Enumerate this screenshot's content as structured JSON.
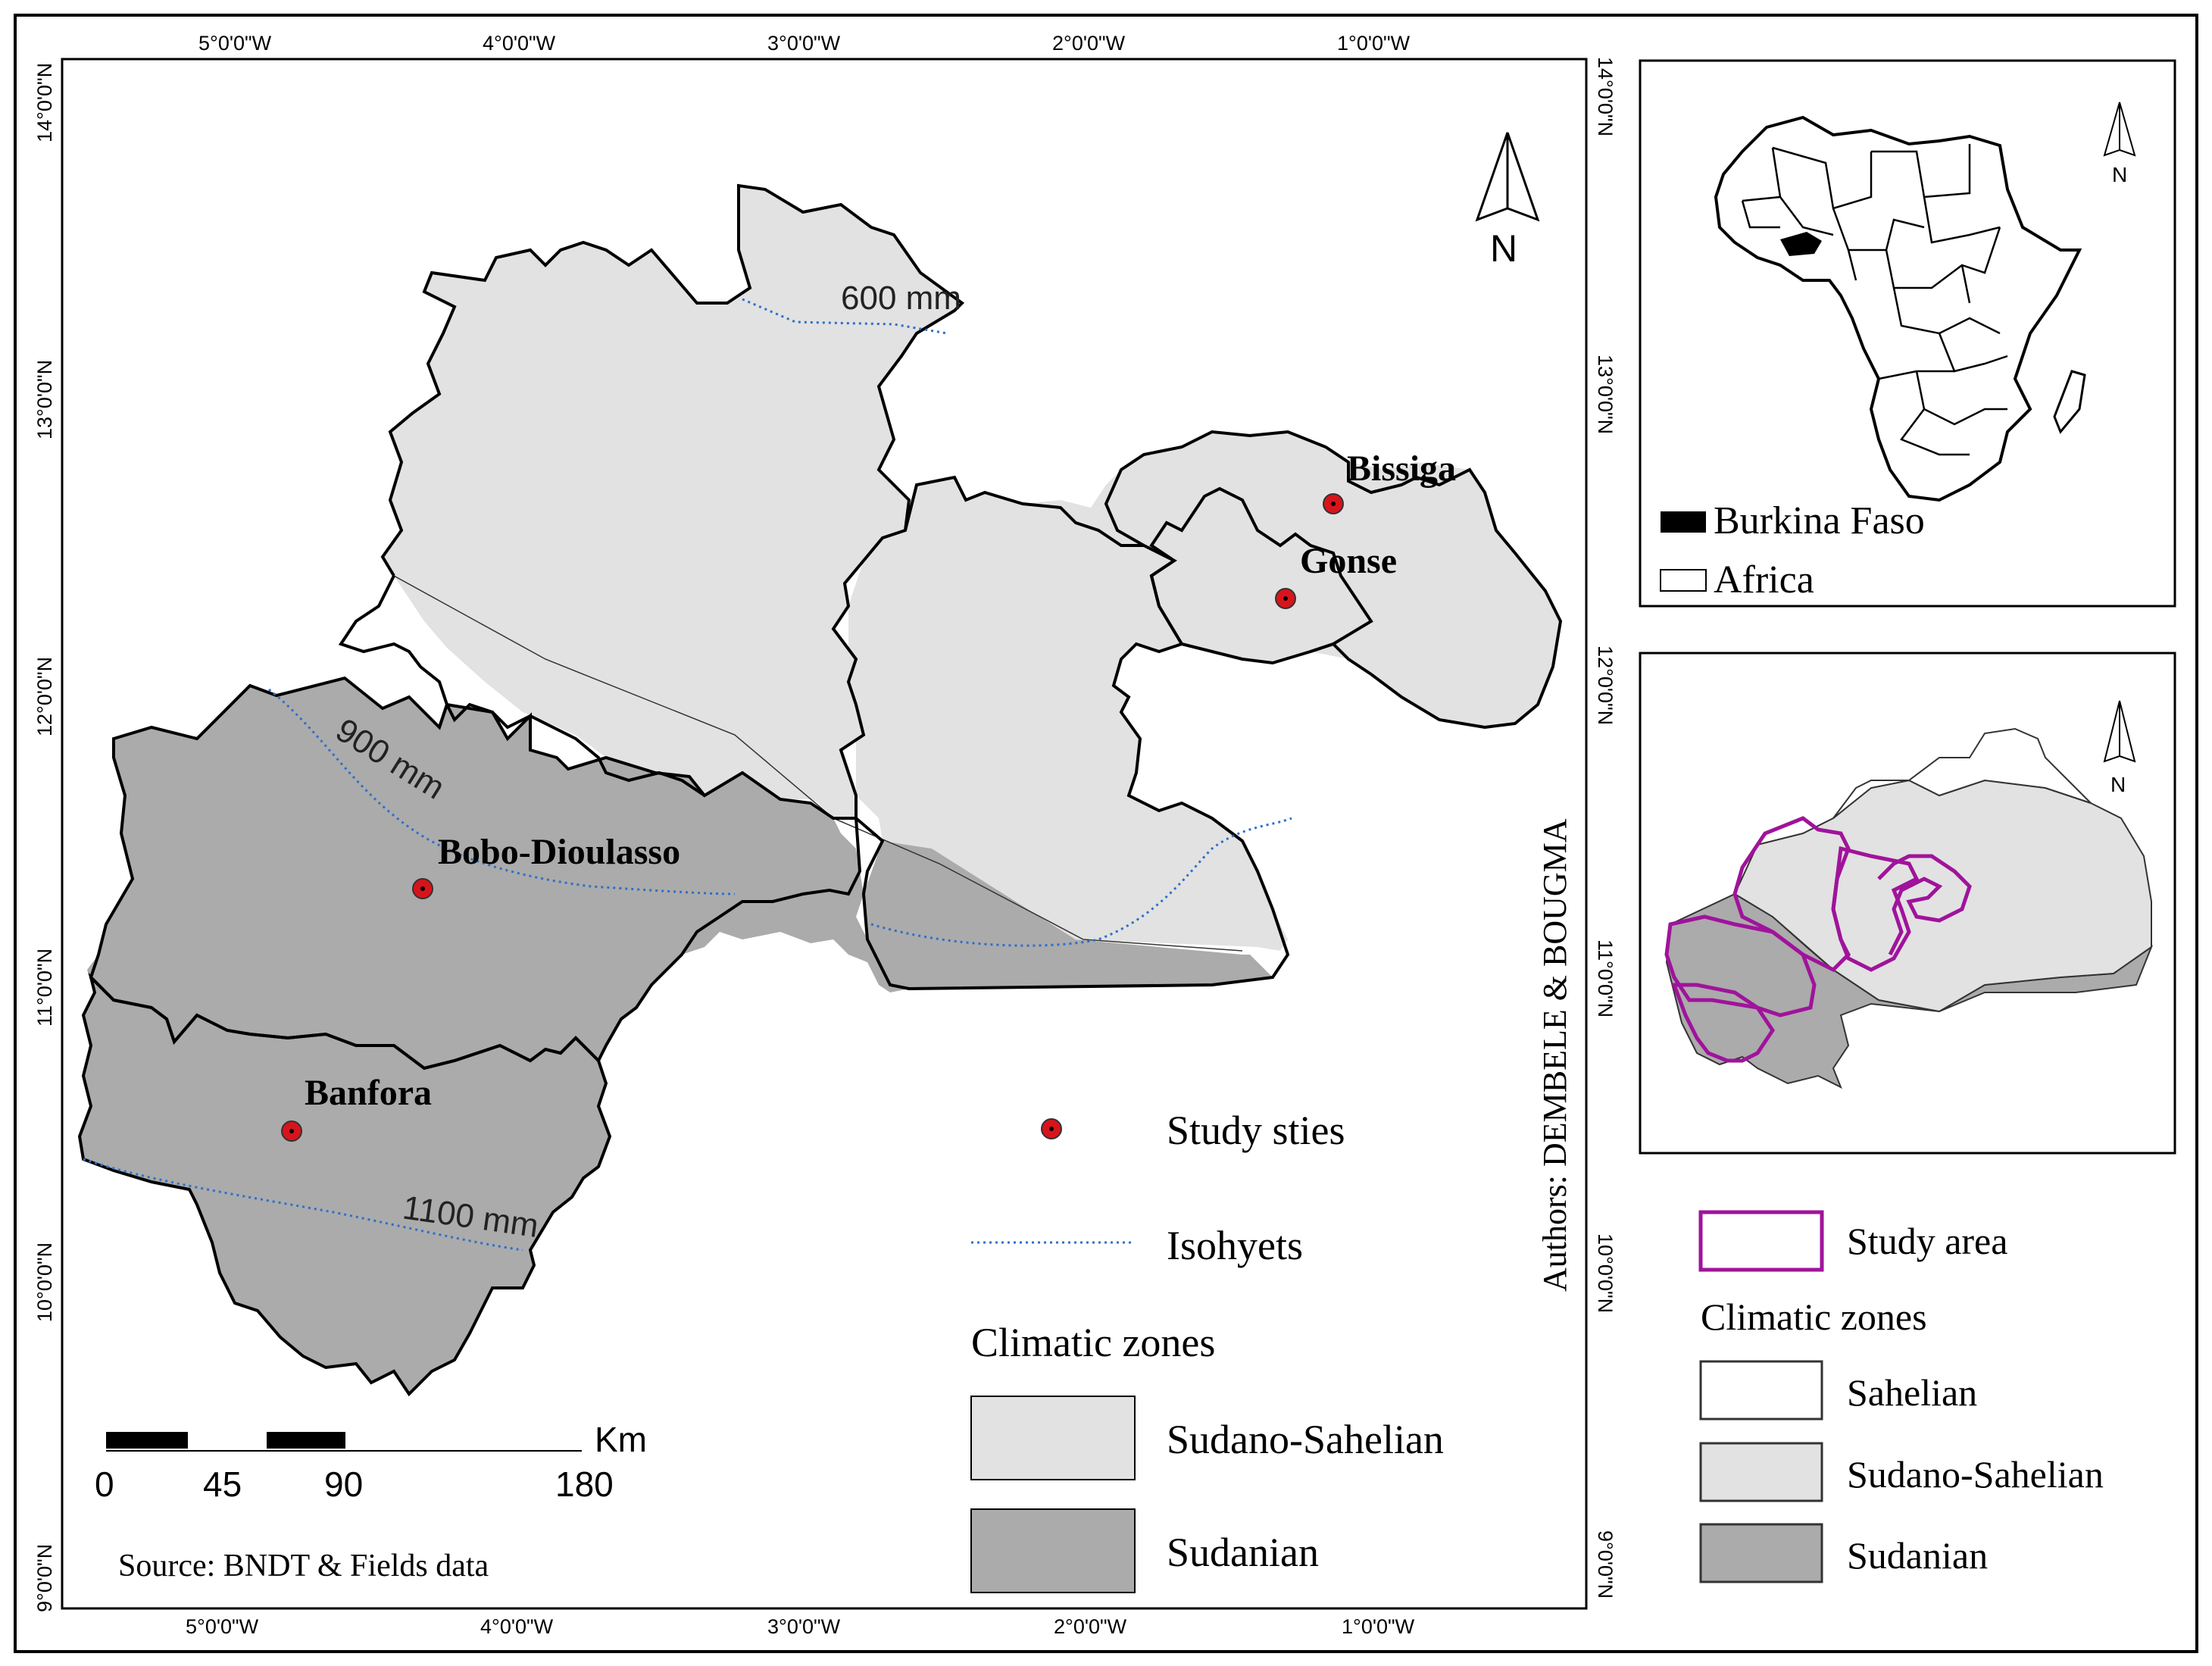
{
  "main_map": {
    "graticule": {
      "top": [
        "5°0'0\"W",
        "4°0'0\"W",
        "3°0'0\"W",
        "2°0'0\"W",
        "1°0'0\"W"
      ],
      "bottom": [
        "5°0'0\"W",
        "4°0'0\"W",
        "3°0'0\"W",
        "2°0'0\"W",
        "1°0'0\"W"
      ],
      "left": [
        "14°0'0\"N",
        "13°0'0\"N",
        "12°0'0\"N",
        "11°0'0\"N",
        "10°0'0\"N",
        "9°0'0\"N"
      ],
      "right": [
        "14°0'0\"N",
        "13°0'0\"N",
        "12°0'0\"N",
        "11°0'0\"N",
        "10°0'0\"N",
        "9°0'0\"N"
      ]
    },
    "sites": [
      {
        "name": "Bissiga"
      },
      {
        "name": "Gonse"
      },
      {
        "name": "Bobo-Dioulasso"
      },
      {
        "name": "Banfora"
      }
    ],
    "isohyets": [
      "600 mm",
      "900 mm",
      "1100 mm"
    ],
    "north_label": "N",
    "scale_bar": {
      "unit": "Km",
      "ticks": [
        "0",
        "45",
        "90",
        "180"
      ]
    },
    "source": "Source: BNDT & Fields data",
    "authors": "Authors: DEMBELE & BOUGMA"
  },
  "legend": {
    "study_sites": "Study sties",
    "isohyets": "Isohyets",
    "zones_title": "Climatic zones",
    "zones": [
      {
        "label": "Sudano-Sahelian",
        "color": "#e2e2e2"
      },
      {
        "label": "Sudanian",
        "color": "#ababab"
      }
    ]
  },
  "africa_inset": {
    "north_label": "N",
    "legend": [
      {
        "label": "Burkina Faso",
        "color": "#000000"
      },
      {
        "label": "Africa",
        "color": "#ffffff"
      }
    ]
  },
  "burkina_inset": {
    "north_label": "N",
    "legend": {
      "study_area": "Study area",
      "zones_title": "Climatic zones",
      "zones": [
        {
          "label": "Sahelian",
          "color": "#ffffff"
        },
        {
          "label": "Sudano-Sahelian",
          "color": "#e2e2e2"
        },
        {
          "label": "Sudanian",
          "color": "#ababab"
        }
      ]
    }
  },
  "colors": {
    "site": "#d8141b",
    "isohyet": "#2f6fc9",
    "study_area": "#a0139b"
  }
}
